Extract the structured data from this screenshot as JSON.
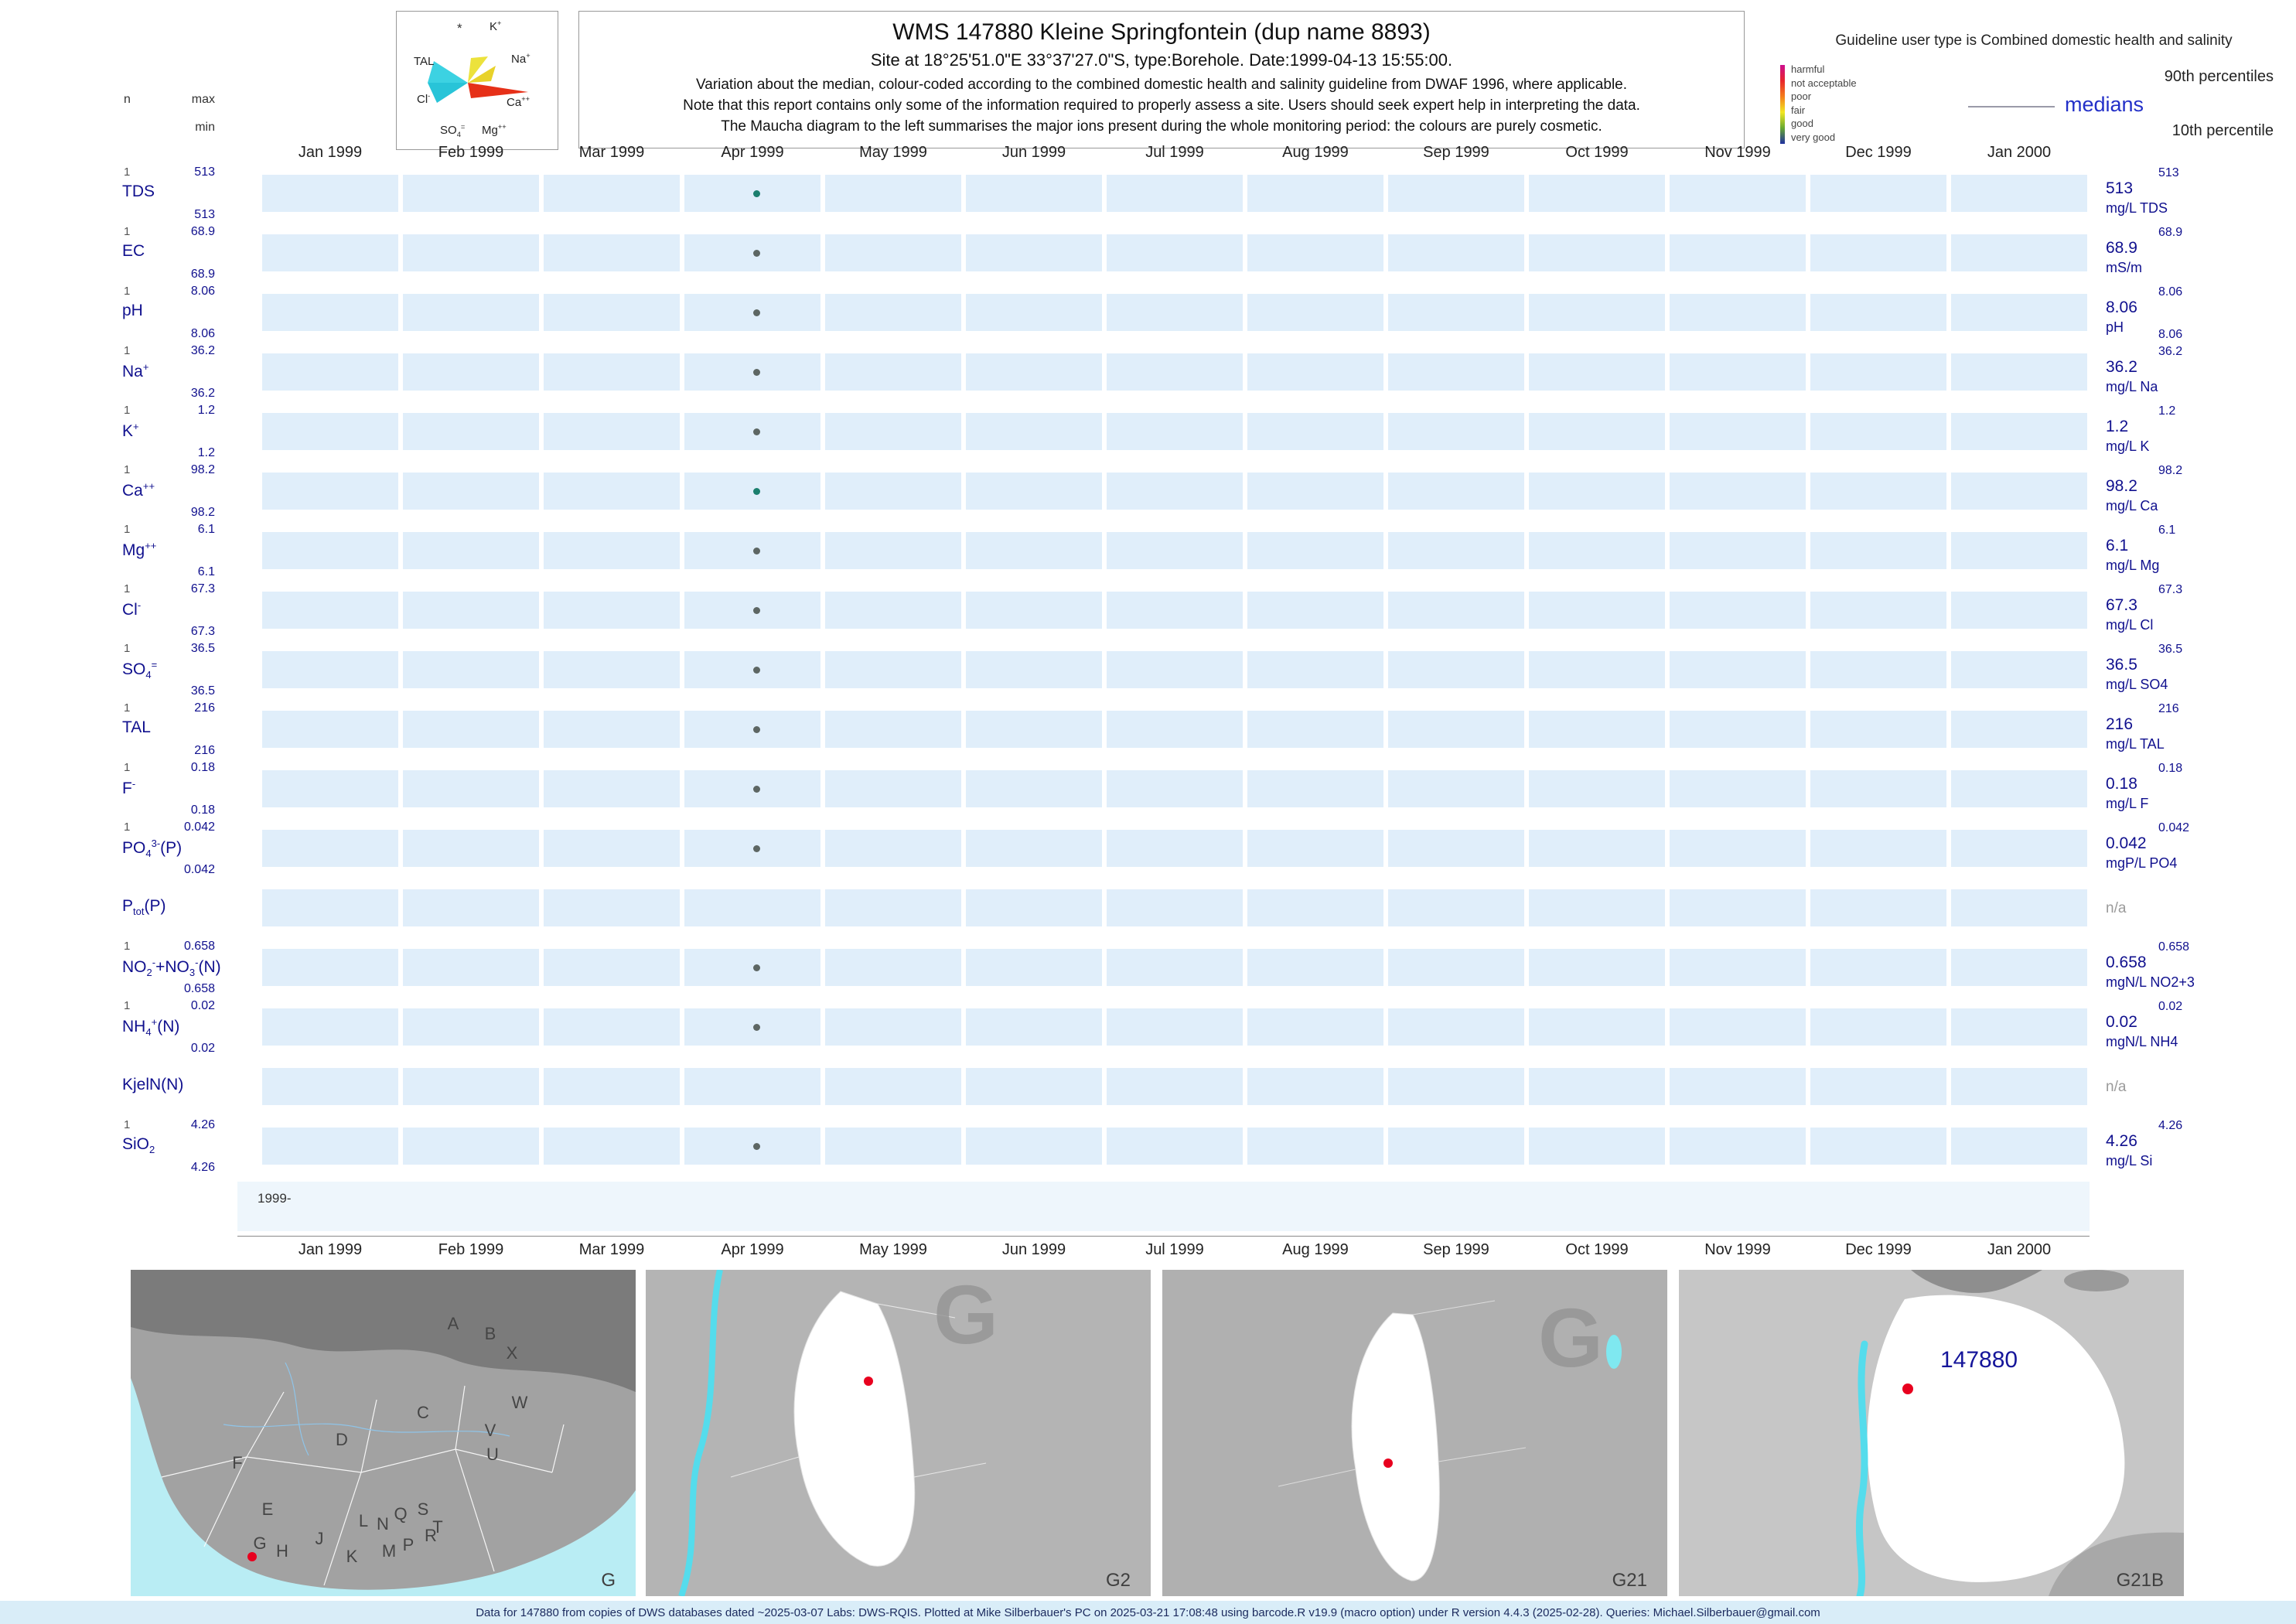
{
  "header": {
    "title": "WMS 147880  Kleine Springfontein (dup name 8893)",
    "subtitle": "Site at 18°25'51.0\"E 33°37'27.0\"S, type:Borehole. Date:1999-04-13 15:55:00.",
    "note1": "Variation about the median,  colour-coded according to the combined domestic health and salinity guideline from DWAF 1996, where applicable.",
    "note2": "Note that this report contains only some of the information required to properly assess a site. Users should seek expert help in interpreting the data.",
    "note3": "The Maucha diagram to the left summarises the major ions present during the whole monitoring period: the colours are purely cosmetic."
  },
  "stats_header": {
    "n": "n",
    "max": "max",
    "min": "min"
  },
  "maucha": {
    "star": "*",
    "ions": [
      "K<sup>+</sup>",
      "Na<sup>+</sup>",
      "TAL",
      "Cl<sup>-</sup>",
      "Ca<sup>++</sup>",
      "SO<sub>4</sub><sup>=</sup>",
      "Mg<sup>++</sup>"
    ]
  },
  "guideline": {
    "user_type": "Guideline user type is Combined domestic health and salinity",
    "classes": [
      {
        "label": "harmful",
        "color": "#cc0e8f"
      },
      {
        "label": "not acceptable",
        "color": "#e8262d"
      },
      {
        "label": "poor",
        "color": "#f47e1b"
      },
      {
        "label": "fair",
        "color": "#f2e722"
      },
      {
        "label": "good",
        "color": "#67a832"
      },
      {
        "label": "very good",
        "color": "#1f2f9e"
      }
    ],
    "p90_label": "90th percentiles",
    "median_label": "medians",
    "p10_label": "10th percentile"
  },
  "labels": {
    "na": "n/a",
    "year_band": "1999-"
  },
  "chart_data": {
    "type": "scatter",
    "title": "Variation about the median for WMS site 147880, one sample plotted per determinand",
    "sample_date": "1999-04-13",
    "x_ticks": [
      "Jan 1999",
      "Feb 1999",
      "Mar 1999",
      "Apr 1999",
      "May 1999",
      "Jun 1999",
      "Jul 1999",
      "Aug 1999",
      "Sep 1999",
      "Oct 1999",
      "Nov 1999",
      "Dec 1999",
      "Jan 2000"
    ],
    "series": [
      {
        "id": "tds",
        "name_html": "TDS",
        "n": "1",
        "max": "513",
        "min": "513",
        "median": "513",
        "p90": "513",
        "unit": "mg/L TDS",
        "has_data": true,
        "dot_color": "#1b7f6e"
      },
      {
        "id": "ec",
        "name_html": "EC",
        "n": "1",
        "max": "68.9",
        "min": "68.9",
        "median": "68.9",
        "p90": "68.9",
        "unit": "mS/m",
        "has_data": true,
        "dot_color": "#5d6663"
      },
      {
        "id": "ph",
        "name_html": "pH",
        "n": "1",
        "max": "8.06",
        "min": "8.06",
        "median": "8.06",
        "p90": "8.06",
        "p10": "8.06",
        "unit": "pH",
        "has_data": true,
        "dot_color": "#5d6663"
      },
      {
        "id": "na",
        "name_html": "Na<sup>+</sup>",
        "n": "1",
        "max": "36.2",
        "min": "36.2",
        "median": "36.2",
        "p90": "36.2",
        "unit": "mg/L Na",
        "has_data": true,
        "dot_color": "#5d6663"
      },
      {
        "id": "k",
        "name_html": "K<sup>+</sup>",
        "n": "1",
        "max": "1.2",
        "min": "1.2",
        "median": "1.2",
        "p90": "1.2",
        "unit": "mg/L K",
        "has_data": true,
        "dot_color": "#5d6663"
      },
      {
        "id": "ca",
        "name_html": "Ca<sup>++</sup>",
        "n": "1",
        "max": "98.2",
        "min": "98.2",
        "median": "98.2",
        "p90": "98.2",
        "unit": "mg/L Ca",
        "has_data": true,
        "dot_color": "#1b7f6e"
      },
      {
        "id": "mg",
        "name_html": "Mg<sup>++</sup>",
        "n": "1",
        "max": "6.1",
        "min": "6.1",
        "median": "6.1",
        "p90": "6.1",
        "unit": "mg/L Mg",
        "has_data": true,
        "dot_color": "#5d6663"
      },
      {
        "id": "cl",
        "name_html": "Cl<sup>-</sup>",
        "n": "1",
        "max": "67.3",
        "min": "67.3",
        "median": "67.3",
        "p90": "67.3",
        "unit": "mg/L Cl",
        "has_data": true,
        "dot_color": "#5d6663"
      },
      {
        "id": "so4",
        "name_html": "SO<sub>4</sub><sup>=</sup>",
        "n": "1",
        "max": "36.5",
        "min": "36.5",
        "median": "36.5",
        "p90": "36.5",
        "unit": "mg/L SO4",
        "has_data": true,
        "dot_color": "#5d6663"
      },
      {
        "id": "tal",
        "name_html": "TAL",
        "n": "1",
        "max": "216",
        "min": "216",
        "median": "216",
        "p90": "216",
        "unit": "mg/L TAL",
        "has_data": true,
        "dot_color": "#5d6663"
      },
      {
        "id": "f",
        "name_html": "F<sup>-</sup>",
        "n": "1",
        "max": "0.18",
        "min": "0.18",
        "median": "0.18",
        "p90": "0.18",
        "unit": "mg/L F",
        "has_data": true,
        "dot_color": "#5d6663"
      },
      {
        "id": "po4",
        "name_html": "PO<sub>4</sub><sup>3-</sup>(P)",
        "n": "1",
        "max": "0.042",
        "min": "0.042",
        "median": "0.042",
        "p90": "0.042",
        "unit": "mgP/L PO4",
        "has_data": true,
        "dot_color": "#5d6663"
      },
      {
        "id": "ptot",
        "name_html": "P<sub>tot</sub>(P)",
        "has_data": false
      },
      {
        "id": "no2no3",
        "name_html": "NO<sub>2</sub><sup>-</sup>+NO<sub>3</sub><sup>-</sup>(N)",
        "n": "1",
        "max": "0.658",
        "min": "0.658",
        "median": "0.658",
        "p90": "0.658",
        "unit": "mgN/L NO2+3",
        "has_data": true,
        "dot_color": "#5d6663"
      },
      {
        "id": "nh4",
        "name_html": "NH<sub>4</sub><sup>+</sup>(N)",
        "n": "1",
        "max": "0.02",
        "min": "0.02",
        "median": "0.02",
        "p90": "0.02",
        "unit": "mgN/L NH4",
        "has_data": true,
        "dot_color": "#5d6663"
      },
      {
        "id": "kjeln",
        "name_html": "KjelN(N)",
        "has_data": false
      },
      {
        "id": "sio2",
        "name_html": "SiO<sub>2</sub>",
        "n": "1",
        "max": "4.26",
        "min": "4.26",
        "median": "4.26",
        "p90": "4.26",
        "unit": "mg/L Si",
        "has_data": true,
        "dot_color": "#5d6663"
      }
    ]
  },
  "maps": [
    {
      "label": "G",
      "region_letters": [
        "A",
        "B",
        "X",
        "W",
        "C",
        "D",
        "V",
        "U",
        "F",
        "E",
        "Q",
        "S",
        "T",
        "L",
        "N",
        "R",
        "G",
        "H",
        "J",
        "K",
        "M",
        "P"
      ]
    },
    {
      "label": "G2",
      "watermark": "G"
    },
    {
      "label": "G21",
      "watermark": "G"
    },
    {
      "label": "G21B",
      "station_label": "147880"
    }
  ],
  "footer": "Data for 147880 from copies of DWS databases dated ~2025-03-07 Labs: DWS-RQIS. Plotted at Mike Silberbauer's PC on 2025-03-21 17:08:48 using barcode.R v19.9 (macro option) under R version 4.4.3 (2025-02-28). Queries: Michael.Silberbauer@gmail.com"
}
